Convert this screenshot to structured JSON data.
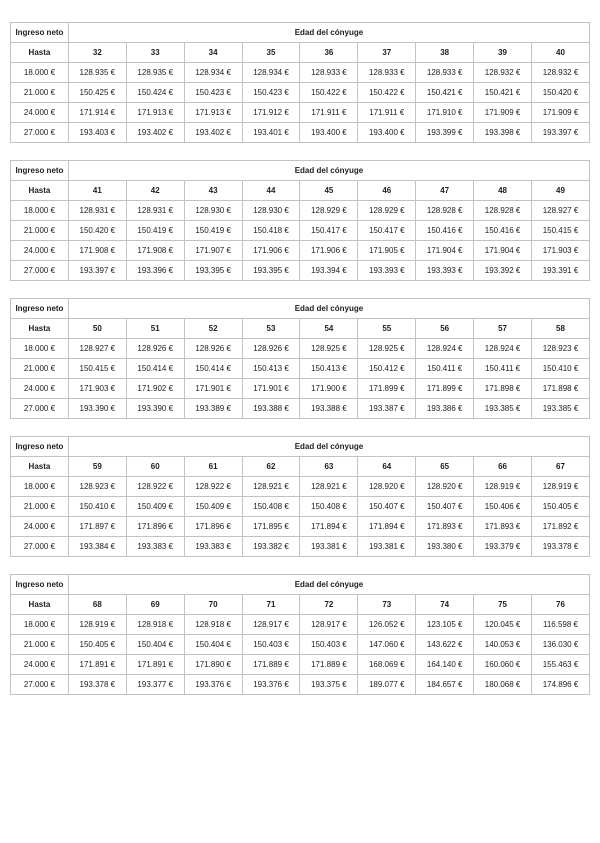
{
  "labels": {
    "income_header": "Ingreso neto",
    "age_group_header": "Edad del cónyuge",
    "row_header": "Hasta"
  },
  "tables": [
    {
      "ages": [
        "32",
        "33",
        "34",
        "35",
        "36",
        "37",
        "38",
        "39",
        "40"
      ],
      "rows": [
        {
          "label": "18.000 €",
          "values": [
            "128.935 €",
            "128.935 €",
            "128.934 €",
            "128.934 €",
            "128.933 €",
            "128.933 €",
            "128.933 €",
            "128.932 €",
            "128.932 €"
          ]
        },
        {
          "label": "21.000 €",
          "values": [
            "150.425 €",
            "150.424 €",
            "150.423 €",
            "150.423 €",
            "150.422 €",
            "150.422 €",
            "150.421 €",
            "150.421 €",
            "150.420 €"
          ]
        },
        {
          "label": "24.000 €",
          "values": [
            "171.914 €",
            "171.913 €",
            "171.913 €",
            "171.912 €",
            "171.911 €",
            "171.911 €",
            "171.910 €",
            "171.909 €",
            "171.909 €"
          ]
        },
        {
          "label": "27.000 €",
          "values": [
            "193.403 €",
            "193.402 €",
            "193.402 €",
            "193.401 €",
            "193.400 €",
            "193.400 €",
            "193.399 €",
            "193.398 €",
            "193.397 €"
          ]
        }
      ]
    },
    {
      "ages": [
        "41",
        "42",
        "43",
        "44",
        "45",
        "46",
        "47",
        "48",
        "49"
      ],
      "rows": [
        {
          "label": "18.000 €",
          "values": [
            "128.931 €",
            "128.931 €",
            "128.930 €",
            "128.930 €",
            "128.929 €",
            "128.929 €",
            "128.928 €",
            "128.928 €",
            "128.927 €"
          ]
        },
        {
          "label": "21.000 €",
          "values": [
            "150.420 €",
            "150.419 €",
            "150.419 €",
            "150.418 €",
            "150.417 €",
            "150.417 €",
            "150.416 €",
            "150.416 €",
            "150.415 €"
          ]
        },
        {
          "label": "24.000 €",
          "values": [
            "171.908 €",
            "171.908 €",
            "171.907 €",
            "171.906 €",
            "171.906 €",
            "171.905 €",
            "171.904 €",
            "171.904 €",
            "171.903 €"
          ]
        },
        {
          "label": "27.000 €",
          "values": [
            "193.397 €",
            "193.396 €",
            "193.395 €",
            "193.395 €",
            "193.394 €",
            "193.393 €",
            "193.393 €",
            "193.392 €",
            "193.391 €"
          ]
        }
      ]
    },
    {
      "ages": [
        "50",
        "51",
        "52",
        "53",
        "54",
        "55",
        "56",
        "57",
        "58"
      ],
      "rows": [
        {
          "label": "18.000 €",
          "values": [
            "128.927 €",
            "128.926 €",
            "128.926 €",
            "128.926 €",
            "128.925 €",
            "128.925 €",
            "128.924 €",
            "128.924 €",
            "128.923 €"
          ]
        },
        {
          "label": "21.000 €",
          "values": [
            "150.415 €",
            "150.414 €",
            "150.414 €",
            "150.413 €",
            "150.413 €",
            "150.412 €",
            "150.411 €",
            "150.411 €",
            "150.410 €"
          ]
        },
        {
          "label": "24.000 €",
          "values": [
            "171.903 €",
            "171.902 €",
            "171.901 €",
            "171.901 €",
            "171.900 €",
            "171.899 €",
            "171.899 €",
            "171.898 €",
            "171.898 €"
          ]
        },
        {
          "label": "27.000 €",
          "values": [
            "193.390 €",
            "193.390 €",
            "193.389 €",
            "193.388 €",
            "193.388 €",
            "193.387 €",
            "193.386 €",
            "193.385 €",
            "193.385 €"
          ]
        }
      ]
    },
    {
      "ages": [
        "59",
        "60",
        "61",
        "62",
        "63",
        "64",
        "65",
        "66",
        "67"
      ],
      "rows": [
        {
          "label": "18.000 €",
          "values": [
            "128.923 €",
            "128.922 €",
            "128.922 €",
            "128.921 €",
            "128.921 €",
            "128.920 €",
            "128.920 €",
            "128.919 €",
            "128.919 €"
          ]
        },
        {
          "label": "21.000 €",
          "values": [
            "150.410 €",
            "150.409 €",
            "150.409 €",
            "150.408 €",
            "150.408 €",
            "150.407 €",
            "150.407 €",
            "150.406 €",
            "150.405 €"
          ]
        },
        {
          "label": "24.000 €",
          "values": [
            "171.897 €",
            "171.896 €",
            "171.896 €",
            "171.895 €",
            "171.894 €",
            "171.894 €",
            "171.893 €",
            "171.893 €",
            "171.892 €"
          ]
        },
        {
          "label": "27.000 €",
          "values": [
            "193.384 €",
            "193.383 €",
            "193.383 €",
            "193.382 €",
            "193.381 €",
            "193.381 €",
            "193.380 €",
            "193.379 €",
            "193.378 €"
          ]
        }
      ]
    },
    {
      "ages": [
        "68",
        "69",
        "70",
        "71",
        "72",
        "73",
        "74",
        "75",
        "76"
      ],
      "rows": [
        {
          "label": "18.000 €",
          "values": [
            "128.919 €",
            "128.918 €",
            "128.918 €",
            "128.917 €",
            "128.917 €",
            "126.052 €",
            "123.105 €",
            "120.045 €",
            "116.598 €"
          ]
        },
        {
          "label": "21.000 €",
          "values": [
            "150.405 €",
            "150.404 €",
            "150.404 €",
            "150.403 €",
            "150.403 €",
            "147.060 €",
            "143.622 €",
            "140.053 €",
            "136.030 €"
          ]
        },
        {
          "label": "24.000 €",
          "values": [
            "171.891 €",
            "171.891 €",
            "171.890 €",
            "171.889 €",
            "171.889 €",
            "168.069 €",
            "164.140 €",
            "160.060 €",
            "155.463 €"
          ]
        },
        {
          "label": "27.000 €",
          "values": [
            "193.378 €",
            "193.377 €",
            "193.376 €",
            "193.376 €",
            "193.375 €",
            "189.077 €",
            "184.657 €",
            "180.068 €",
            "174.896 €"
          ]
        }
      ]
    }
  ]
}
